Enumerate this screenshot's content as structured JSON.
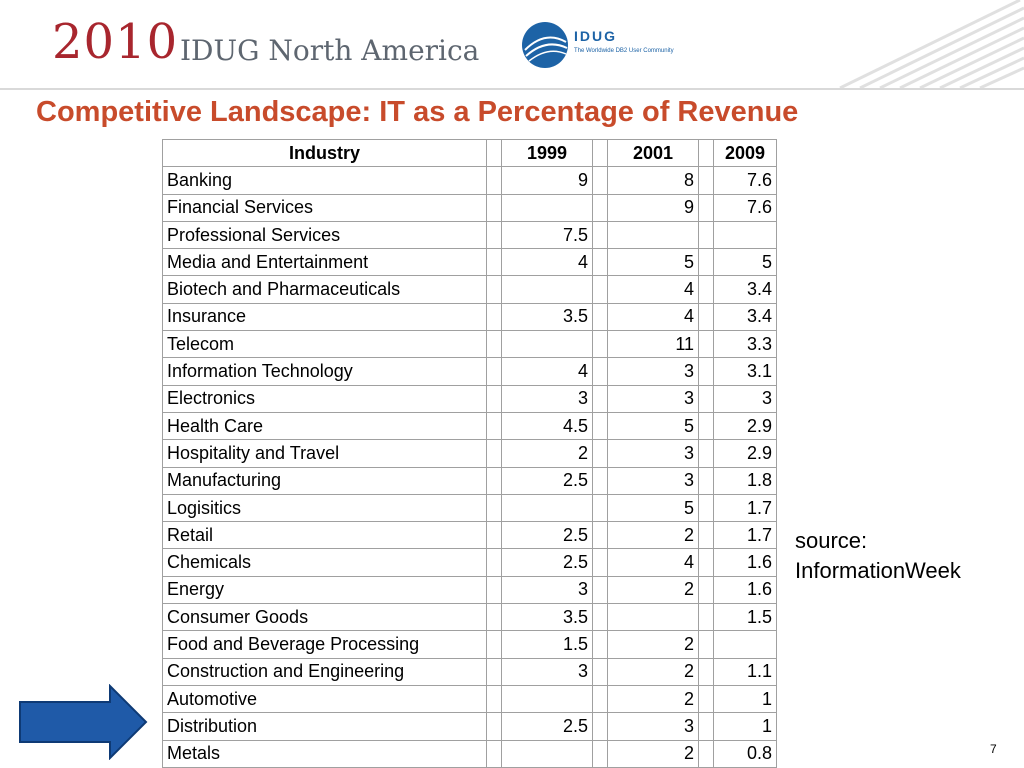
{
  "header": {
    "year": "2010",
    "conference": "IDUG North America",
    "logo_text": "IDUG",
    "logo_tagline": "The Worldwide DB2 User Community"
  },
  "slide": {
    "title": "Competitive Landscape: IT as a Percentage of Revenue",
    "source_line1": "source:",
    "source_line2": "InformationWeek",
    "page_number": "7"
  },
  "table": {
    "headers": [
      "Industry",
      "1999",
      "2001",
      "2009"
    ],
    "rows": [
      [
        "Banking",
        "9",
        "8",
        "7.6"
      ],
      [
        "Financial Services",
        "",
        "9",
        "7.6"
      ],
      [
        "Professional Services",
        "7.5",
        "",
        ""
      ],
      [
        "Media and Entertainment",
        "4",
        "5",
        "5"
      ],
      [
        "Biotech and Pharmaceuticals",
        "",
        "4",
        "3.4"
      ],
      [
        "Insurance",
        "3.5",
        "4",
        "3.4"
      ],
      [
        "Telecom",
        "",
        "11",
        "3.3"
      ],
      [
        "Information Technology",
        "4",
        "3",
        "3.1"
      ],
      [
        "Electronics",
        "3",
        "3",
        "3"
      ],
      [
        "Health Care",
        "4.5",
        "5",
        "2.9"
      ],
      [
        "Hospitality and Travel",
        "2",
        "3",
        "2.9"
      ],
      [
        "Manufacturing",
        "2.5",
        "3",
        "1.8"
      ],
      [
        "Logisitics",
        "",
        "5",
        "1.7"
      ],
      [
        "Retail",
        "2.5",
        "2",
        "1.7"
      ],
      [
        "Chemicals",
        "2.5",
        "4",
        "1.6"
      ],
      [
        "Energy",
        "3",
        "2",
        "1.6"
      ],
      [
        "Consumer Goods",
        "3.5",
        "",
        "1.5"
      ],
      [
        "Food and Beverage Processing",
        "1.5",
        "2",
        ""
      ],
      [
        "Construction and Engineering",
        "3",
        "2",
        "1.1"
      ],
      [
        "Automotive",
        "",
        "2",
        "1"
      ],
      [
        "Distribution",
        "2.5",
        "3",
        "1"
      ],
      [
        "Metals",
        "",
        "2",
        "0.8"
      ]
    ]
  },
  "colors": {
    "title": "#c84b2b",
    "year": "#a8262e",
    "arrow": "#1f5aa8"
  }
}
